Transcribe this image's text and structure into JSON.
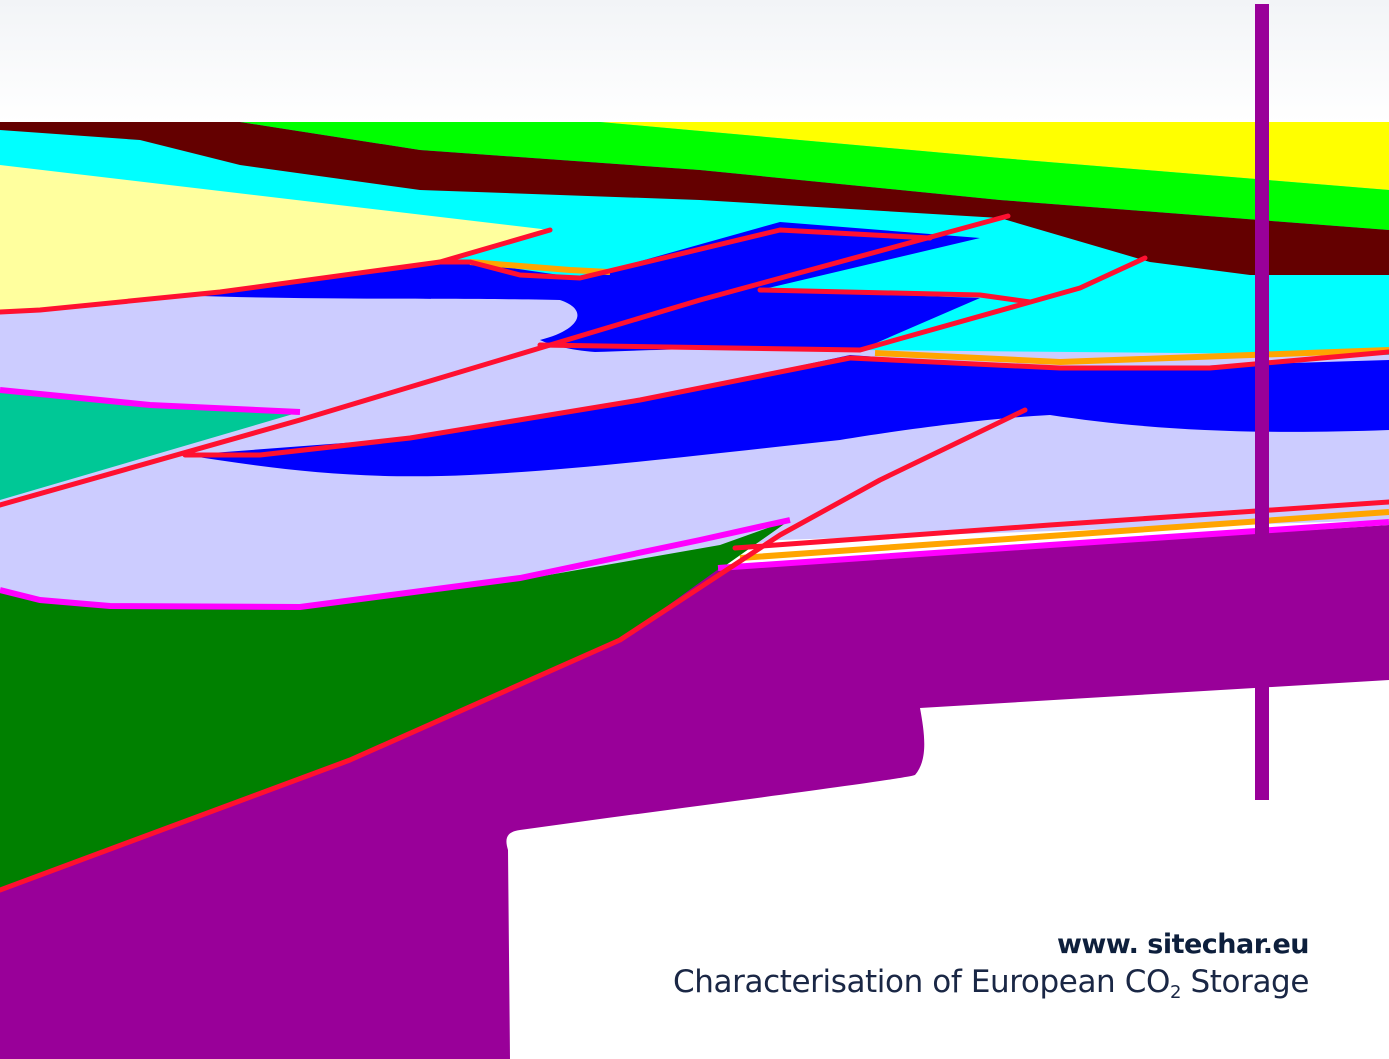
{
  "caption": {
    "website": "www. sitechar.eu",
    "tagline_before": "Characterisation of European CO",
    "tagline_subscript": "2",
    "tagline_after": " Storage"
  },
  "colors": {
    "yellow": "#ffff00",
    "green": "#00ff00",
    "maroon": "#640000",
    "cyan": "#00ffff",
    "pale_yellow": "#ffff9e",
    "blue": "#0000ff",
    "lavender": "#ccccff",
    "teal": "#00c896",
    "dark_green": "#008000",
    "purple": "#990099",
    "fault_red": "#ff1030",
    "horizon_magenta": "#ff00ff",
    "horizon_orange": "#ffa500"
  }
}
